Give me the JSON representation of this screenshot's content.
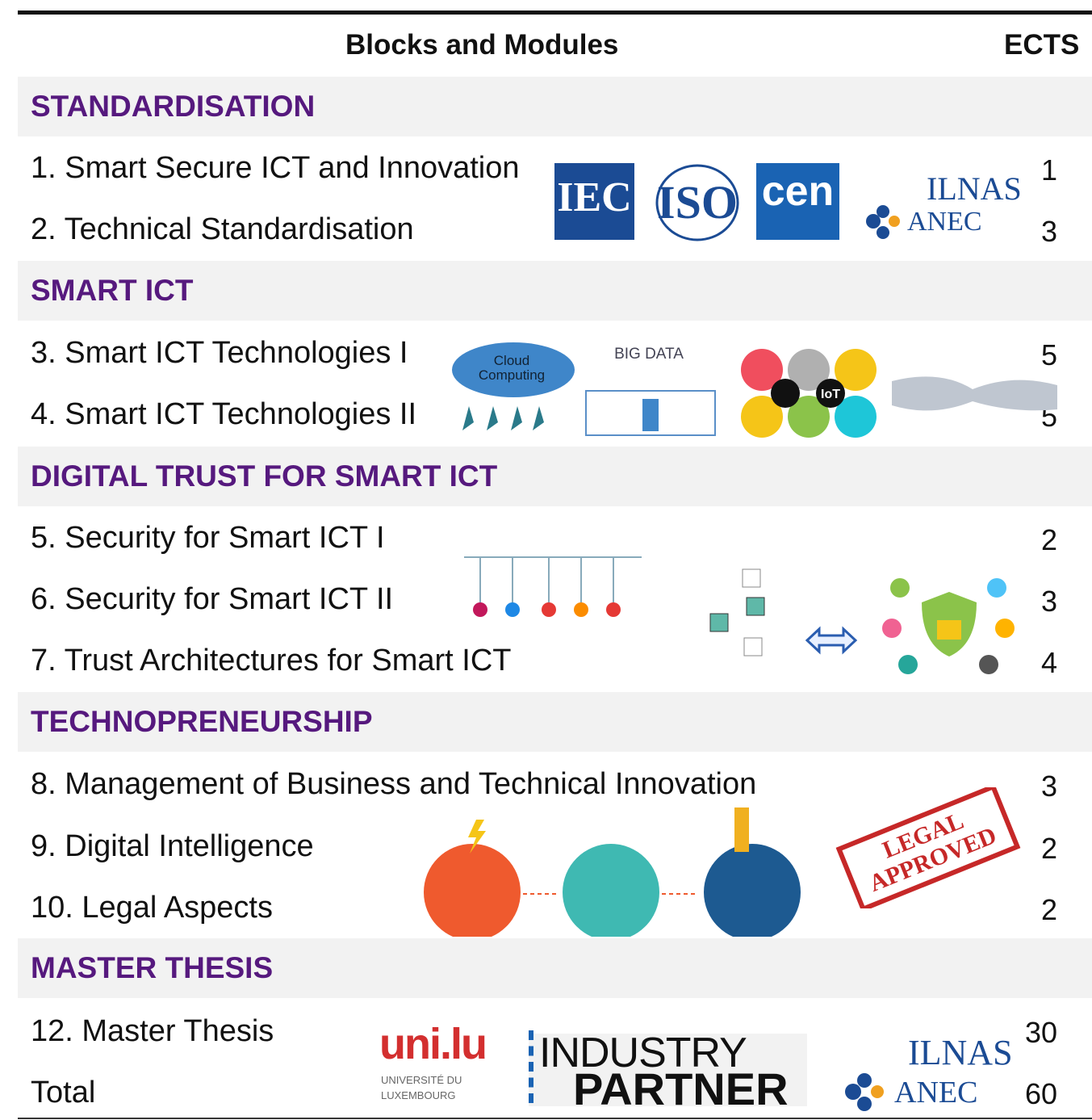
{
  "header": {
    "title": "Blocks and Modules",
    "ects": "ECTS"
  },
  "sections": [
    {
      "title": "STANDARDISATION",
      "modules": [
        {
          "name": "1. Smart Secure ICT and Innovation",
          "ects": 1
        },
        {
          "name": "2. Technical Standardisation",
          "ects": 3
        }
      ],
      "logos": [
        "IEC",
        "ISO",
        "cen",
        "ILNAS",
        "ANEC"
      ]
    },
    {
      "title": "SMART ICT",
      "modules": [
        {
          "name": "3. Smart ICT Technologies I",
          "ects": 5
        },
        {
          "name": "4. Smart ICT Technologies II",
          "ects": 5
        }
      ],
      "logos": [
        "Cloud",
        "Computing",
        "BIG DATA",
        "IoT"
      ]
    },
    {
      "title": "DIGITAL TRUST FOR SMART ICT",
      "modules": [
        {
          "name": "5. Security for Smart ICT I",
          "ects": 2
        },
        {
          "name": "6. Security for Smart ICT II",
          "ects": 3
        },
        {
          "name": "7. Trust Architectures for Smart ICT",
          "ects": 4
        }
      ]
    },
    {
      "title": "TECHNOPRENEURSHIP",
      "modules": [
        {
          "name": "8. Management of Business and Technical Innovation",
          "ects": 3
        },
        {
          "name": "9. Digital Intelligence",
          "ects": 2
        },
        {
          "name": "10. Legal Aspects",
          "ects": 2
        }
      ],
      "logos": [
        "LEGAL",
        "APPROVED"
      ]
    },
    {
      "title": "MASTER THESIS",
      "modules": [
        {
          "name": "12. Master Thesis",
          "ects": 30
        },
        {
          "name": "Total",
          "ects": 60
        }
      ],
      "logos": [
        "uni.lu",
        "UNIVERSITÉ DU",
        "LUXEMBOURG",
        "INDUSTRY",
        "PARTNER",
        "ILNAS",
        "ANEC"
      ]
    }
  ]
}
